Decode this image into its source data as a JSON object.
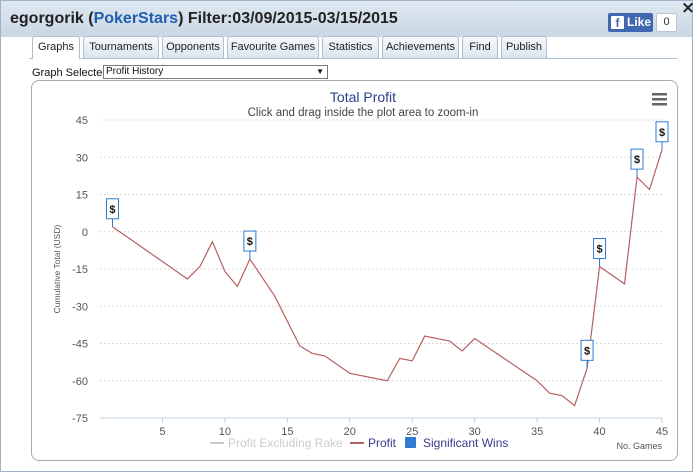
{
  "window": {
    "player": "egorgorik",
    "site": "PokerStars",
    "filter": "Filter:03/09/2015-03/15/2015",
    "close_label": "×"
  },
  "facebook": {
    "like_label": "Like",
    "count": "0"
  },
  "tabs": [
    "Graphs",
    "Tournaments",
    "Opponents",
    "Favourite Games",
    "Statistics",
    "Achievements",
    "Find",
    "Publish"
  ],
  "active_tab": "Graphs",
  "graph_selector": {
    "label": "Graph Selected:",
    "value": "Profit History"
  },
  "chart_data": {
    "type": "line",
    "title": "Total Profit",
    "subtitle": "Click and drag inside the plot area to zoom-in",
    "xlabel": "No. Games",
    "ylabel": "Cumulative Total (USD)",
    "xlim": [
      0,
      45
    ],
    "ylim": [
      -75,
      45
    ],
    "x_ticks": [
      5,
      10,
      15,
      20,
      25,
      30,
      35,
      40,
      45
    ],
    "y_ticks": [
      45,
      30,
      15,
      0,
      -15,
      -30,
      -45,
      -60,
      -75
    ],
    "grid": "horizontal",
    "legend_position": "bottom-center",
    "colors": {
      "profit": "#b85f5f",
      "excluding_rake": "#cccccc",
      "significant_wins": "#2e7bcf"
    },
    "series": [
      {
        "name": "Profit",
        "x": [
          1,
          7,
          8,
          9,
          10,
          11,
          12,
          14,
          16,
          17,
          18,
          20,
          23,
          24,
          25,
          26,
          28,
          29,
          30,
          35,
          36,
          37,
          38,
          39,
          40,
          42,
          43,
          44,
          45
        ],
        "y": [
          2,
          -19,
          -14,
          -4,
          -16,
          -22,
          -11,
          -26,
          -46,
          -49,
          -50,
          -57,
          -60,
          -51,
          -52,
          -42,
          -44,
          -48,
          -43,
          -60,
          -65,
          -66,
          -70,
          -55,
          -14,
          -21,
          22,
          17,
          33
        ]
      },
      {
        "name": "Profit Excluding Rake",
        "x": [],
        "y": []
      }
    ],
    "legend": [
      "Profit Excluding Rake",
      "Profit",
      "Significant Wins"
    ],
    "flags": [
      {
        "x": 1,
        "y": 2,
        "label": "$"
      },
      {
        "x": 12,
        "y": -11,
        "label": "$"
      },
      {
        "x": 39,
        "y": -55,
        "label": "$"
      },
      {
        "x": 40,
        "y": -14,
        "label": "$"
      },
      {
        "x": 43,
        "y": 22,
        "label": "$"
      },
      {
        "x": 45,
        "y": 33,
        "label": "$"
      }
    ]
  }
}
